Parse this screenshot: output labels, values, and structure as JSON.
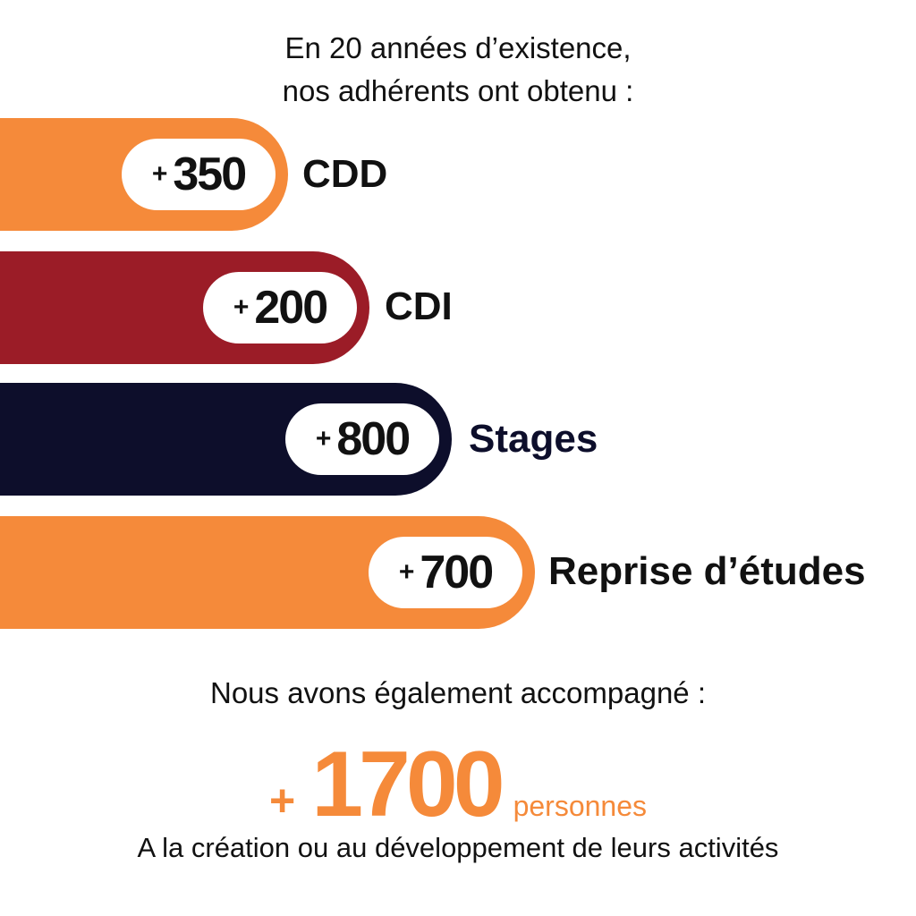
{
  "heading": {
    "line1": "En 20 années d’existence,",
    "line2": "nos adhérents ont obtenu :"
  },
  "stats": [
    {
      "plus": "+",
      "value": "350",
      "label": "CDD",
      "color": "#F58A3A",
      "label_color": "#111111"
    },
    {
      "plus": "+",
      "value": "200",
      "label": "CDI",
      "color": "#9B1C27",
      "label_color": "#111111"
    },
    {
      "plus": "+",
      "value": "800",
      "label": "Stages",
      "color": "#0D0E2B",
      "label_color": "#0D0E2B"
    },
    {
      "plus": "+",
      "value": "700",
      "label": "Reprise d’études",
      "color": "#F58A3A",
      "label_color": "#111111"
    }
  ],
  "footer": {
    "intro": "Nous avons également accompagné :",
    "plus": "+",
    "value": "1700",
    "unit": "personnes",
    "caption": "A la création ou au développement de leurs activités",
    "accent": "#F58A3A"
  }
}
